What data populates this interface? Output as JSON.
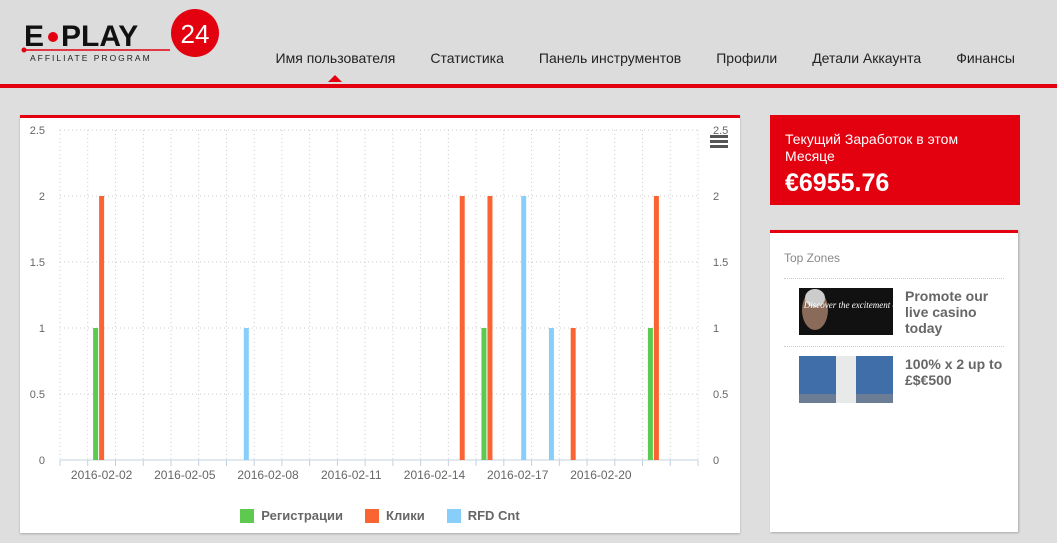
{
  "logo": {
    "brand": "E·PLAY",
    "number": "24",
    "tagline": "AFFILIATE PROGRAM"
  },
  "nav": [
    {
      "label": "Имя пользователя",
      "active": true
    },
    {
      "label": "Статистика"
    },
    {
      "label": "Панель инструментов"
    },
    {
      "label": "Профили"
    },
    {
      "label": "Детали Аккаунта"
    },
    {
      "label": "Финансы"
    }
  ],
  "earnings": {
    "label": "Текущий Заработок в этом Месяце",
    "value": "€6955.76",
    "color": "#e3000f"
  },
  "top_zones": {
    "title": "Top Zones",
    "items": [
      {
        "image_text": "Discover the excitement of our",
        "text": "Promote our live casino today"
      },
      {
        "text": "100% x 2 up to £$€500"
      }
    ]
  },
  "chart_data": {
    "type": "bar",
    "categories": [
      "2016-02-01",
      "2016-02-02",
      "2016-02-03",
      "2016-02-04",
      "2016-02-05",
      "2016-02-06",
      "2016-02-07",
      "2016-02-08",
      "2016-02-09",
      "2016-02-10",
      "2016-02-11",
      "2016-02-12",
      "2016-02-13",
      "2016-02-14",
      "2016-02-15",
      "2016-02-16",
      "2016-02-17",
      "2016-02-18",
      "2016-02-19",
      "2016-02-20",
      "2016-02-21",
      "2016-02-22",
      "2016-02-23"
    ],
    "tick_labels": [
      "2016-02-02",
      "2016-02-05",
      "2016-02-08",
      "2016-02-11",
      "2016-02-14",
      "2016-02-17",
      "2016-02-20"
    ],
    "y_ticks": [
      "0",
      "0.5",
      "1",
      "1.5",
      "2",
      "2.5"
    ],
    "ylim": [
      0,
      2.5
    ],
    "grid": true,
    "legend": "bottom",
    "series": [
      {
        "name": "Регистрации",
        "color": "#5ec94f",
        "values": [
          0,
          1,
          0,
          0,
          0,
          0,
          0,
          0,
          0,
          0,
          0,
          0,
          0,
          0,
          0,
          1,
          0,
          0,
          0,
          0,
          0,
          1,
          0
        ]
      },
      {
        "name": "Клики",
        "color": "#fa6432",
        "values": [
          0,
          2,
          0,
          0,
          0,
          0,
          0,
          0,
          0,
          0,
          0,
          0,
          0,
          0,
          2,
          2,
          0,
          0,
          1,
          0,
          0,
          2,
          0
        ]
      },
      {
        "name": "RFD Cnt",
        "color": "#87cefa",
        "values": [
          0,
          0,
          0,
          0,
          0,
          0,
          1,
          0,
          0,
          0,
          0,
          0,
          0,
          0,
          0,
          0,
          2,
          1,
          0,
          0,
          0,
          0,
          0
        ]
      }
    ]
  }
}
